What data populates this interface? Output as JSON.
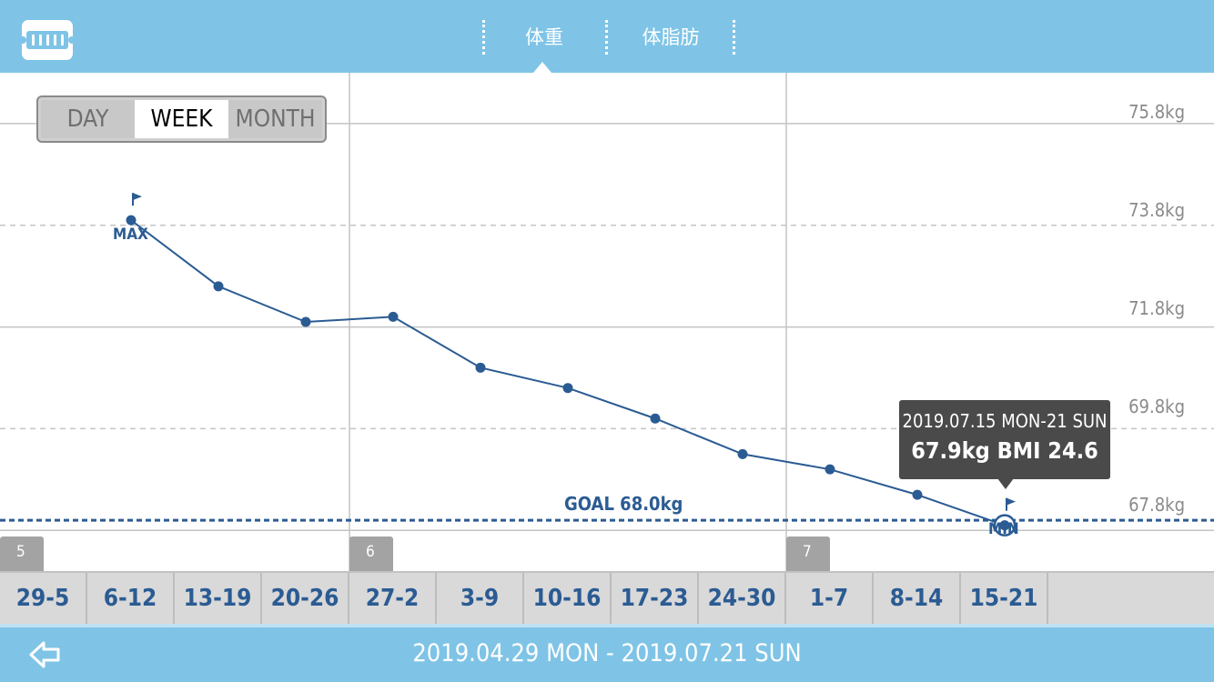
{
  "header": {
    "tabs": [
      {
        "label": "体重",
        "selected": true
      },
      {
        "label": "体脂肪",
        "selected": false
      }
    ],
    "app_icon": "scale-ruler-icon"
  },
  "period_selector": {
    "options": [
      "DAY",
      "WEEK",
      "MONTH"
    ],
    "selected": "WEEK"
  },
  "chart_data": {
    "type": "line",
    "categories": [
      "29-5",
      "6-12",
      "13-19",
      "20-26",
      "27-2",
      "3-9",
      "10-16",
      "17-23",
      "24-30",
      "1-7",
      "8-14",
      "15-21"
    ],
    "series": [
      {
        "values": [
          null,
          73.9,
          72.6,
          71.9,
          72.0,
          71.0,
          70.6,
          70.0,
          69.3,
          69.0,
          68.5,
          67.9
        ]
      }
    ],
    "y_tick_labels": [
      "75.8kg",
      "73.8kg",
      "71.8kg",
      "69.8kg",
      "67.8kg"
    ],
    "y_ticks": [
      75.8,
      73.8,
      71.8,
      69.8,
      67.8
    ],
    "ylim": [
      67.0,
      76.8
    ],
    "goal": {
      "label": "GOAL 68.0kg",
      "value": 68.0
    },
    "max_label": "MAX",
    "min_label": "MIN",
    "month_markers": [
      {
        "label": "5",
        "category": "29-5"
      },
      {
        "label": "6",
        "category": "27-2"
      },
      {
        "label": "7",
        "category": "1-7"
      }
    ],
    "colors": {
      "line": "#2b5b93",
      "grid": "#bdbdbd",
      "goal": "#2b5b93"
    }
  },
  "tooltip": {
    "date": "2019.07.15 MON-21 SUN",
    "values": "67.9kg  BMI 24.6"
  },
  "footer": {
    "range": "2019.04.29 MON - 2019.07.21 SUN",
    "back_icon": "back-arrow-icon"
  },
  "colors": {
    "header": "#7fc4e6",
    "accent": "#2b5b93",
    "tooltip": "#4a4a4a"
  }
}
